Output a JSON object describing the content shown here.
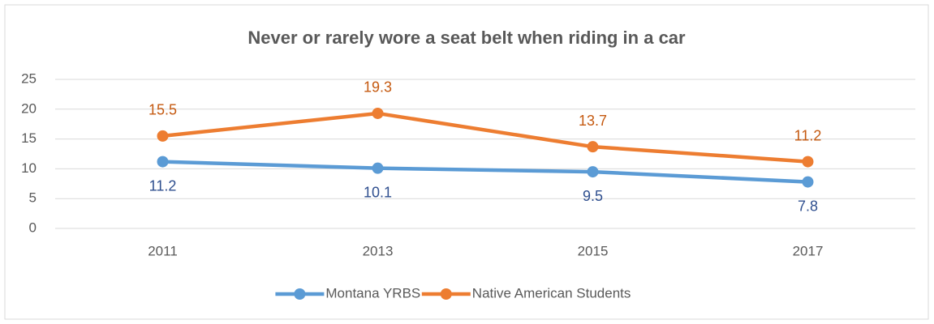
{
  "chart_data": {
    "type": "line",
    "title": "Never or rarely wore a seat belt when riding in a car",
    "categories": [
      "2011",
      "2013",
      "2015",
      "2017"
    ],
    "series": [
      {
        "name": "Montana YRBS",
        "color": "#5b9bd5",
        "label_color": "#2f4f8f",
        "values": [
          11.2,
          10.1,
          9.5,
          7.8
        ]
      },
      {
        "name": "Native American Students",
        "color": "#ed7d31",
        "label_color": "#c55a11",
        "values": [
          15.5,
          19.3,
          13.7,
          11.2
        ]
      }
    ],
    "ylim": [
      0,
      25
    ],
    "yticks": [
      0,
      5,
      10,
      15,
      20,
      25
    ],
    "grid": true,
    "legend": "bottom"
  }
}
